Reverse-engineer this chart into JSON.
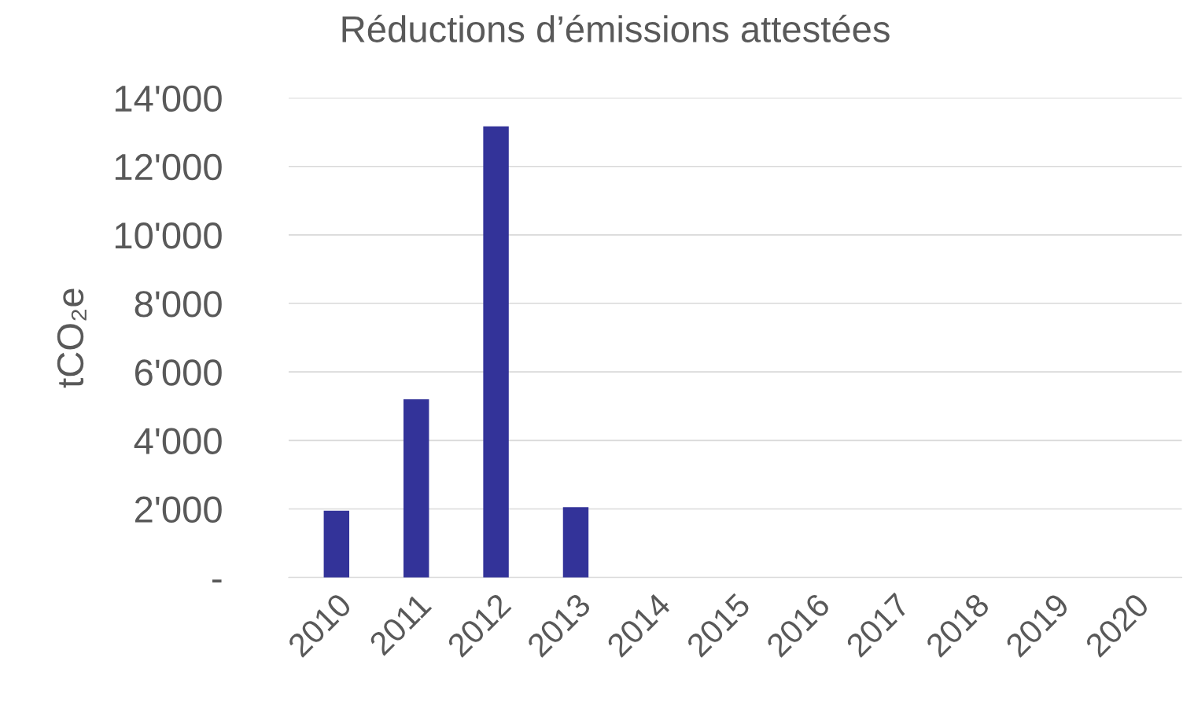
{
  "chart_data": {
    "type": "bar",
    "title": "Réductions d’émissions attestées",
    "ylabel": "tCO₂e",
    "categories": [
      "2010",
      "2011",
      "2012",
      "2013",
      "2014",
      "2015",
      "2016",
      "2017",
      "2018",
      "2019",
      "2020"
    ],
    "values": [
      1950,
      5200,
      13170,
      2050,
      null,
      null,
      null,
      null,
      null,
      null,
      null
    ],
    "color": "#333399",
    "ylim": [
      0,
      14000
    ],
    "yticks": [
      {
        "value": 0,
        "label": "-"
      },
      {
        "value": 2000,
        "label": "2'000"
      },
      {
        "value": 4000,
        "label": "4'000"
      },
      {
        "value": 6000,
        "label": "6'000"
      },
      {
        "value": 8000,
        "label": "8'000"
      },
      {
        "value": 10000,
        "label": "10'000"
      },
      {
        "value": 12000,
        "label": "12'000"
      },
      {
        "value": 14000,
        "label": "14'000"
      }
    ],
    "grid": "y",
    "legend": false
  }
}
